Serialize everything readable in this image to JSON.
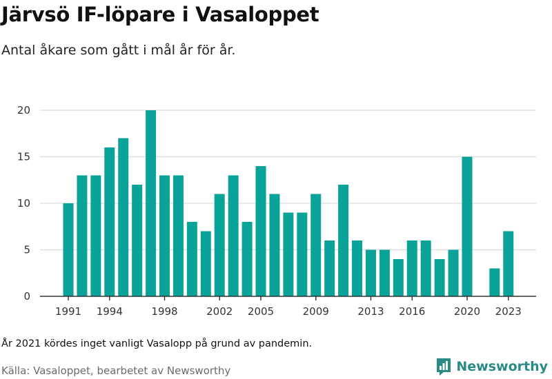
{
  "header": {
    "title": "Järvsö IF-löpare i Vasaloppet",
    "subtitle": "Antal åkare som gått i mål år för år."
  },
  "footer": {
    "note": "År 2021 kördes inget vanligt Vasalopp på grund av pandemin.",
    "source": "Källa: Vasaloppet, bearbetet av Newsworthy",
    "brand": "Newsworthy"
  },
  "colors": {
    "bar": "#0aa39a",
    "grid": "#dcdcdc",
    "axis": "#333333",
    "brand": "#2a8a86"
  },
  "chart_data": {
    "type": "bar",
    "title": "Järvsö IF-löpare i Vasaloppet",
    "subtitle": "Antal åkare som gått i mål år för år.",
    "x": [
      1991,
      1992,
      1993,
      1994,
      1995,
      1996,
      1997,
      1998,
      1999,
      2000,
      2001,
      2002,
      2003,
      2004,
      2005,
      2006,
      2007,
      2008,
      2009,
      2010,
      2011,
      2012,
      2013,
      2014,
      2015,
      2016,
      2017,
      2018,
      2019,
      2020,
      2021,
      2022,
      2023
    ],
    "values": [
      10,
      13,
      13,
      16,
      17,
      12,
      20,
      13,
      13,
      8,
      7,
      11,
      13,
      8,
      14,
      11,
      9,
      9,
      11,
      6,
      12,
      6,
      5,
      5,
      4,
      6,
      6,
      4,
      5,
      15,
      0,
      3,
      7
    ],
    "x_ticks": [
      1991,
      1994,
      1998,
      2002,
      2005,
      2009,
      2013,
      2016,
      2020,
      2023
    ],
    "y_ticks": [
      0,
      5,
      10,
      15,
      20
    ],
    "ylim": [
      0,
      20
    ],
    "grid": true,
    "legend": "none"
  }
}
